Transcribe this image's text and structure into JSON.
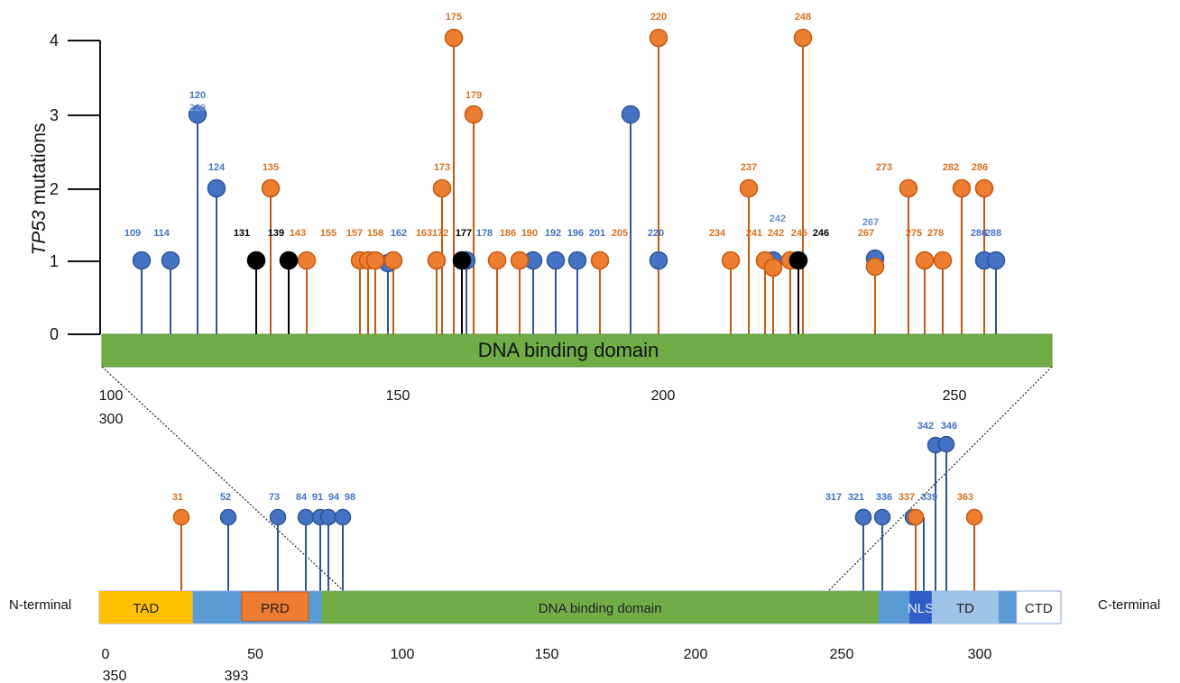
{
  "colors": {
    "blue": "#4472c4",
    "orange": "#ed7d31",
    "black": "#000000",
    "lightblue": "#5b8ed0",
    "domain_green": "#70ad47"
  },
  "top": {
    "ylabel_italic": "TP53",
    "ylabel_rest": " mutations",
    "yticks": [
      "0",
      "1",
      "2",
      "3",
      "4"
    ],
    "bar_label": "DNA binding domain",
    "xticks": [
      {
        "v": 100,
        "t": "100"
      },
      {
        "v": 150,
        "t": "150"
      },
      {
        "v": 200,
        "t": "200"
      },
      {
        "v": 250,
        "t": "250"
      }
    ],
    "xticks_line2": [
      {
        "v": 100,
        "t": "300"
      }
    ]
  },
  "bottom": {
    "left_label": "N-terminal",
    "right_label": "C-terminal",
    "domains": [
      {
        "name": "TAD",
        "start": 0,
        "end": 21
      },
      {
        "name": "",
        "start": 21,
        "end": 32
      },
      {
        "name": "PRD",
        "start": 32,
        "end": 47
      },
      {
        "name": "",
        "start": 47,
        "end": 50
      },
      {
        "name": "DNA binding domain",
        "start": 50,
        "end": 175
      },
      {
        "name": "",
        "start": 175,
        "end": 182
      },
      {
        "name": "NLS",
        "start": 182,
        "end": 187
      },
      {
        "name": "TD",
        "start": 187,
        "end": 202
      },
      {
        "name": "",
        "start": 202,
        "end": 206
      },
      {
        "name": "CTD",
        "start": 206,
        "end": 216
      }
    ],
    "xticks": [
      {
        "v": 0,
        "t": "0"
      },
      {
        "v": 50,
        "t": "50"
      },
      {
        "v": 100,
        "t": "100"
      },
      {
        "v": 150,
        "t": "150"
      },
      {
        "v": 200,
        "t": "200"
      },
      {
        "v": 250,
        "t": "250"
      },
      {
        "v": 300,
        "t": "300"
      }
    ],
    "xticks_line2": [
      {
        "v": 0,
        "t": "350"
      },
      {
        "v": 50,
        "t": "393"
      }
    ]
  },
  "chart_data": [
    {
      "type": "scatter",
      "subtype": "lollipop",
      "panel": "DNA binding domain detail",
      "xlabel": "",
      "ylabel": "TP53 mutations",
      "ylim": [
        0,
        4
      ],
      "series": [
        {
          "name": "blue",
          "points": [
            {
              "pos": 109,
              "count": 1,
              "label": "109"
            },
            {
              "pos": 114,
              "count": 1,
              "label": "114"
            },
            {
              "pos": 120,
              "count": 3,
              "label": "120"
            },
            {
              "pos": 124,
              "count": 2,
              "label": "124"
            },
            {
              "pos": 162,
              "count": 1,
              "label": "162"
            },
            {
              "pos": 178,
              "count": 1,
              "label": "178"
            },
            {
              "pos": 192,
              "count": 1,
              "label": "192"
            },
            {
              "pos": 196,
              "count": 1,
              "label": "196"
            },
            {
              "pos": 201,
              "count": 1,
              "label": "201"
            },
            {
              "pos": 220,
              "count": 3,
              "label": ""
            },
            {
              "pos": 220,
              "count": 1,
              "label": "220"
            },
            {
              "pos": 242,
              "count": 1,
              "label": "242"
            },
            {
              "pos": 267,
              "count": 1,
              "label": "267"
            },
            {
              "pos": 286,
              "count": 1,
              "label": "286"
            },
            {
              "pos": 288,
              "count": 1,
              "label": "288"
            }
          ]
        },
        {
          "name": "orange",
          "points": [
            {
              "pos": 135,
              "count": 2,
              "label": "135"
            },
            {
              "pos": 143,
              "count": 1,
              "label": "143"
            },
            {
              "pos": 155,
              "count": 1,
              "label": "155"
            },
            {
              "pos": 157,
              "count": 1,
              "label": "157"
            },
            {
              "pos": 158,
              "count": 1,
              "label": "158"
            },
            {
              "pos": 163,
              "count": 1,
              "label": "163"
            },
            {
              "pos": 172,
              "count": 1,
              "label": "172"
            },
            {
              "pos": 173,
              "count": 2,
              "label": "173"
            },
            {
              "pos": 175,
              "count": 4,
              "label": "175"
            },
            {
              "pos": 179,
              "count": 3,
              "label": "179"
            },
            {
              "pos": 186,
              "count": 1,
              "label": "186"
            },
            {
              "pos": 190,
              "count": 1,
              "label": "190"
            },
            {
              "pos": 205,
              "count": 1,
              "label": "205"
            },
            {
              "pos": 220,
              "count": 4,
              "label": "220"
            },
            {
              "pos": 234,
              "count": 1,
              "label": "234"
            },
            {
              "pos": 237,
              "count": 2,
              "label": "237"
            },
            {
              "pos": 241,
              "count": 1,
              "label": "241"
            },
            {
              "pos": 242,
              "count": 1,
              "label": "242"
            },
            {
              "pos": 245,
              "count": 1,
              "label": "245"
            },
            {
              "pos": 248,
              "count": 4,
              "label": "248"
            },
            {
              "pos": 267,
              "count": 1,
              "label": "267"
            },
            {
              "pos": 273,
              "count": 2,
              "label": "273"
            },
            {
              "pos": 275,
              "count": 1,
              "label": "275"
            },
            {
              "pos": 278,
              "count": 1,
              "label": "278"
            },
            {
              "pos": 282,
              "count": 2,
              "label": "282"
            },
            {
              "pos": 286,
              "count": 2,
              "label": "286"
            }
          ]
        },
        {
          "name": "black",
          "points": [
            {
              "pos": 131,
              "count": 1,
              "label": "131"
            },
            {
              "pos": 139,
              "count": 1,
              "label": "139"
            },
            {
              "pos": 177,
              "count": 1,
              "label": "177"
            },
            {
              "pos": 246,
              "count": 1,
              "label": "246"
            }
          ]
        }
      ]
    },
    {
      "type": "scatter",
      "subtype": "lollipop",
      "panel": "full protein",
      "series": [
        {
          "name": "blue",
          "points": [
            {
              "pos": 52,
              "label": "52"
            },
            {
              "pos": 73,
              "label": "73"
            },
            {
              "pos": 84,
              "label": "84"
            },
            {
              "pos": 91,
              "label": "91"
            },
            {
              "pos": 94,
              "label": "94"
            },
            {
              "pos": 98,
              "label": "98"
            },
            {
              "pos": 317,
              "label": "317"
            },
            {
              "pos": 321,
              "label": "321"
            },
            {
              "pos": 336,
              "label": "336"
            },
            {
              "pos": 339,
              "label": "339"
            },
            {
              "pos": 342,
              "label": "342"
            },
            {
              "pos": 346,
              "label": "346"
            }
          ]
        },
        {
          "name": "orange",
          "points": [
            {
              "pos": 31,
              "label": "31"
            },
            {
              "pos": 337,
              "label": "337"
            },
            {
              "pos": 363,
              "label": "363"
            }
          ]
        }
      ]
    }
  ]
}
